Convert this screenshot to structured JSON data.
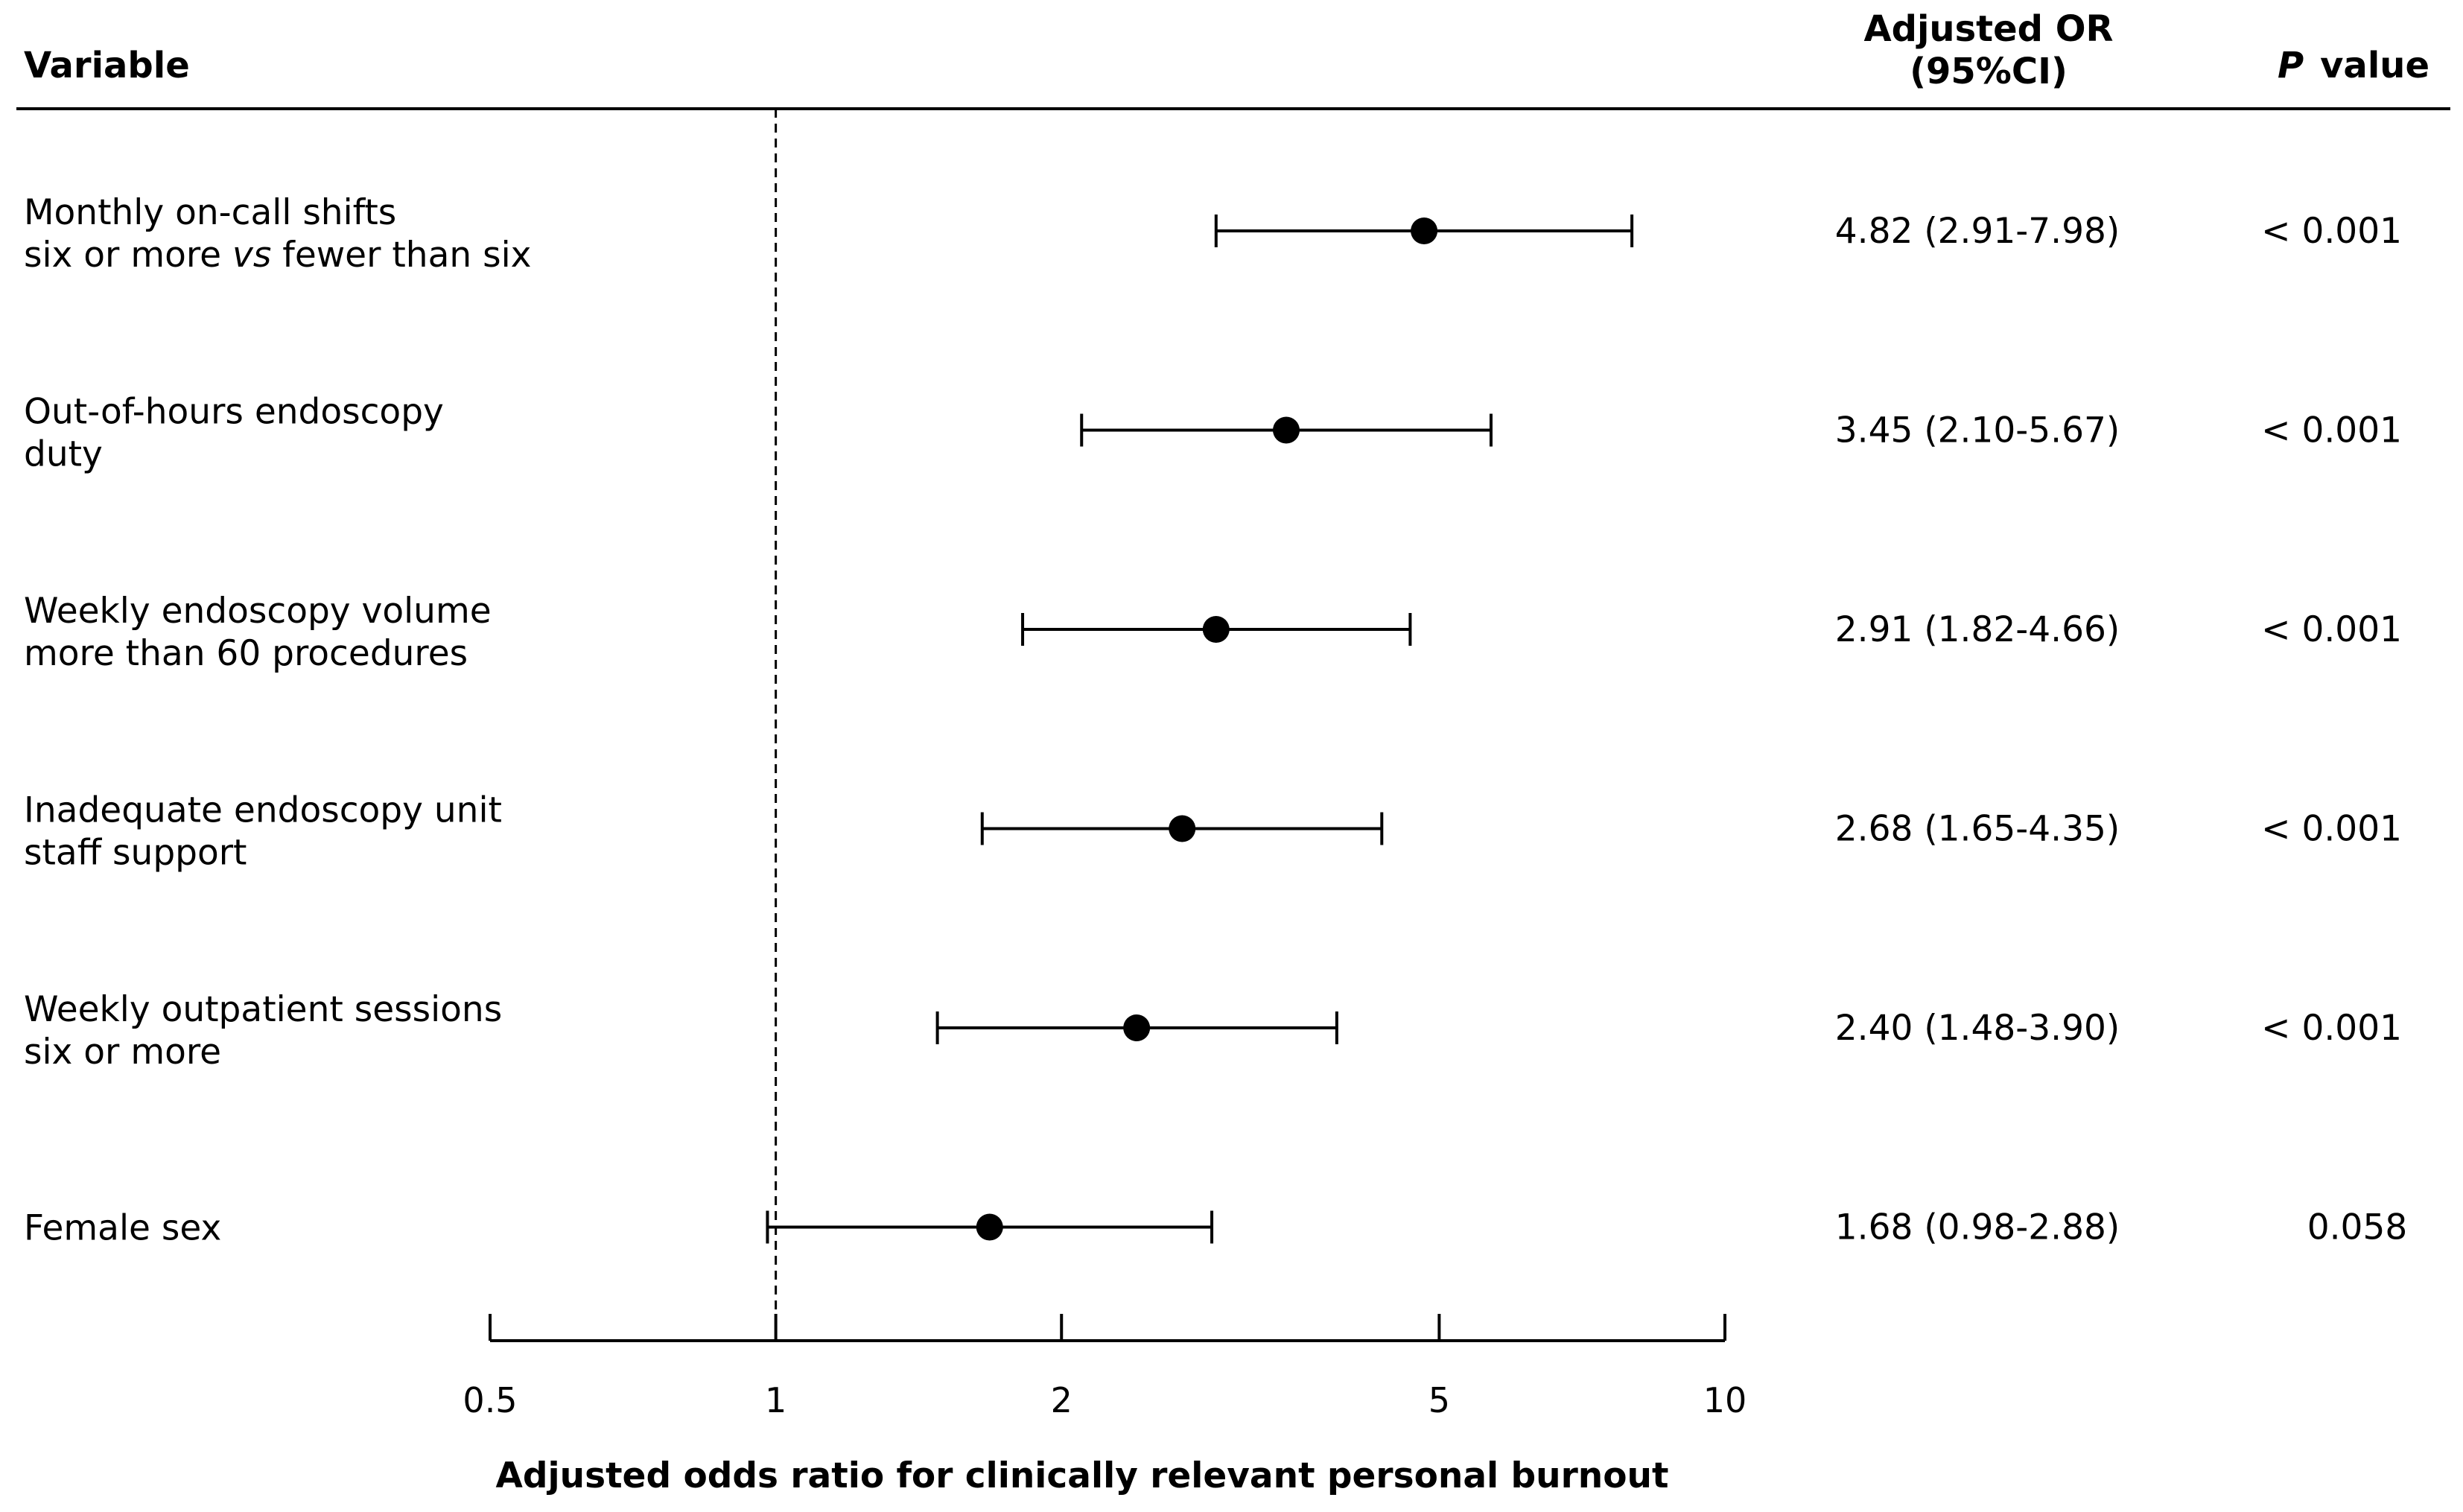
{
  "chart_data": {
    "type": "forest",
    "scale": "log",
    "xlim": [
      0.5,
      10
    ],
    "reference_line": 1,
    "xticks": [
      0.5,
      1,
      2,
      5,
      10
    ],
    "xtick_labels": [
      "0.5",
      "1",
      "2",
      "5",
      "10"
    ],
    "xlabel": "Adjusted odds ratio for clinically relevant personal burnout",
    "headers": {
      "variable": "Variable",
      "or_line1": "Adjusted OR",
      "or_line2": "(95%CI)",
      "p_italic": "P",
      "p_rest": "value"
    },
    "rows": [
      {
        "label_line1": "Monthly on-call shifts",
        "label_line2_pre": "six or more ",
        "label_line2_italic": "vs",
        "label_line2_post": " fewer than six",
        "or": 4.82,
        "lower": 2.91,
        "upper": 7.98,
        "or_text": "4.82 (2.91-7.98)",
        "p_text": "< 0.001"
      },
      {
        "label_line1": "Out-of-hours endoscopy",
        "label_line2_pre": "duty",
        "label_line2_italic": "",
        "label_line2_post": "",
        "or": 3.45,
        "lower": 2.1,
        "upper": 5.67,
        "or_text": "3.45 (2.10-5.67)",
        "p_text": "< 0.001"
      },
      {
        "label_line1": "Weekly endoscopy volume",
        "label_line2_pre": "more than 60 procedures",
        "label_line2_italic": "",
        "label_line2_post": "",
        "or": 2.91,
        "lower": 1.82,
        "upper": 4.66,
        "or_text": "2.91 (1.82-4.66)",
        "p_text": "< 0.001"
      },
      {
        "label_line1": "Inadequate endoscopy unit",
        "label_line2_pre": "staff support",
        "label_line2_italic": "",
        "label_line2_post": "",
        "or": 2.68,
        "lower": 1.65,
        "upper": 4.35,
        "or_text": "2.68 (1.65-4.35)",
        "p_text": "< 0.001"
      },
      {
        "label_line1": "Weekly outpatient sessions",
        "label_line2_pre": "six or more",
        "label_line2_italic": "",
        "label_line2_post": "",
        "or": 2.4,
        "lower": 1.48,
        "upper": 3.9,
        "or_text": "2.40 (1.48-3.90)",
        "p_text": "< 0.001"
      },
      {
        "label_line1": "Female sex",
        "label_line2_pre": "",
        "label_line2_italic": "",
        "label_line2_post": "",
        "or": 1.68,
        "lower": 0.98,
        "upper": 2.88,
        "or_text": "1.68 (0.98-2.88)",
        "p_text": "0.058"
      }
    ]
  }
}
